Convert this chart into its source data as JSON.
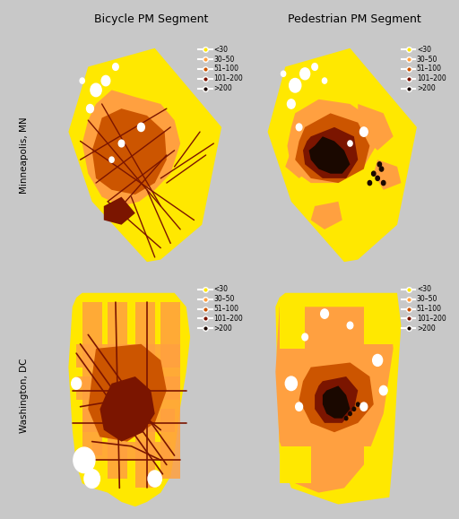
{
  "title_bicycle": "Bicycle PM Segment",
  "title_pedestrian": "Pedestrian PM Segment",
  "row_labels": [
    "Washington, DC",
    "Minneapolis, MN"
  ],
  "legend_labels": [
    "<30",
    "30–50",
    "51–100",
    "101–200",
    ">200"
  ],
  "legend_colors": [
    "#FFE800",
    "#FFA040",
    "#CC5500",
    "#7B1500",
    "#1A0800"
  ],
  "background_color": "#C8C8C8",
  "panel_background": "#FFFFFF",
  "figsize": [
    5.12,
    5.79
  ],
  "dpi": 100,
  "border_color": "#888888",
  "title_fontsize": 9,
  "label_fontsize": 7.5,
  "legend_fontsize": 5.5
}
